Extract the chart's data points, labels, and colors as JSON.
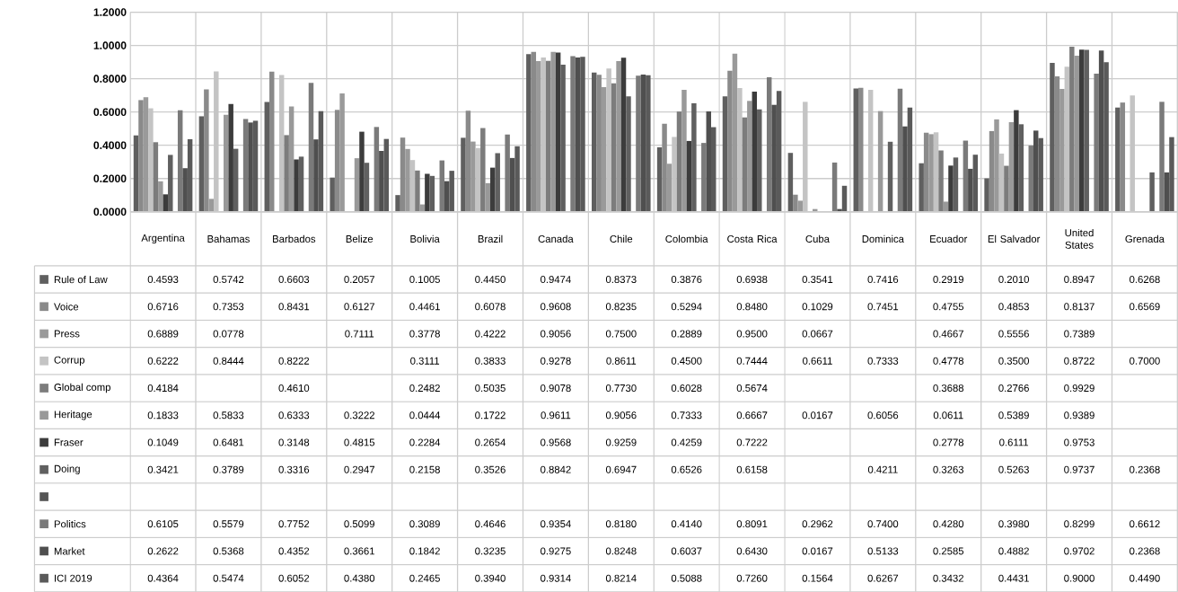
{
  "chart_data": {
    "type": "bar",
    "categories": [
      "Argentina",
      "Bahamas",
      "Barbados",
      "Belize",
      "Bolivia",
      "Brazil",
      "Canada",
      "Chile",
      "Colombia",
      "Costa Rica",
      "Cuba",
      "Dominica",
      "Ecuador",
      "El Salvador",
      "United States",
      "Grenada"
    ],
    "ylim": [
      0,
      1.2
    ],
    "yticks": [
      {
        "value": 0,
        "label": "0.0000"
      },
      {
        "value": 0.2,
        "label": "0.2000"
      },
      {
        "value": 0.4,
        "label": "0.4000"
      },
      {
        "value": 0.6,
        "label": "0.6000"
      },
      {
        "value": 0.8,
        "label": "0.8000"
      },
      {
        "value": 1.0,
        "label": "1.0000"
      },
      {
        "value": 1.2,
        "label": "1.2000"
      }
    ],
    "grid": "y",
    "legend": "bottom",
    "series": [
      {
        "name": "Rule of Law",
        "color": "#5f5f5f",
        "values": [
          0.4593,
          0.5742,
          0.6603,
          0.2057,
          0.1005,
          0.445,
          0.9474,
          0.8373,
          0.3876,
          0.6938,
          0.3541,
          0.7416,
          0.2919,
          0.201,
          0.8947,
          0.6268
        ],
        "value_labels": [
          "0.4593",
          "0.5742",
          "0.6603",
          "0.2057",
          "0.1005",
          "0.4450",
          "0.9474",
          "0.8373",
          "0.3876",
          "0.6938",
          "0.3541",
          "0.7416",
          "0.2919",
          "0.2010",
          "0.8947",
          "0.6268"
        ]
      },
      {
        "name": "Voice",
        "color": "#8a8a8a",
        "values": [
          0.6716,
          0.7353,
          0.8431,
          0.6127,
          0.4461,
          0.6078,
          0.9608,
          0.8235,
          0.5294,
          0.848,
          0.1029,
          0.7451,
          0.4755,
          0.4853,
          0.8137,
          0.6569
        ],
        "value_labels": [
          "0.6716",
          "0.7353",
          "0.8431",
          "0.6127",
          "0.4461",
          "0.6078",
          "0.9608",
          "0.8235",
          "0.5294",
          "0.8480",
          "0.1029",
          "0.7451",
          "0.4755",
          "0.4853",
          "0.8137",
          "0.6569"
        ]
      },
      {
        "name": "Press",
        "color": "#9a9a9a",
        "values": [
          0.6889,
          0.0778,
          null,
          0.7111,
          0.3778,
          0.4222,
          0.9056,
          0.75,
          0.2889,
          0.95,
          0.0667,
          null,
          0.4667,
          0.5556,
          0.7389,
          null
        ],
        "value_labels": [
          "0.6889",
          "0.0778",
          null,
          "0.7111",
          "0.3778",
          "0.4222",
          "0.9056",
          "0.7500",
          "0.2889",
          "0.9500",
          "0.0667",
          null,
          "0.4667",
          "0.5556",
          "0.7389",
          null
        ]
      },
      {
        "name": "Corrup",
        "color": "#c4c4c4",
        "values": [
          0.6222,
          0.8444,
          0.8222,
          null,
          0.3111,
          0.3833,
          0.9278,
          0.8611,
          0.45,
          0.7444,
          0.6611,
          0.7333,
          0.4778,
          0.35,
          0.8722,
          0.7
        ],
        "value_labels": [
          "0.6222",
          "0.8444",
          "0.8222",
          null,
          "0.3111",
          "0.3833",
          "0.9278",
          "0.8611",
          "0.4500",
          "0.7444",
          "0.6611",
          "0.7333",
          "0.4778",
          "0.3500",
          "0.8722",
          "0.7000"
        ]
      },
      {
        "name": "Global comp",
        "color": "#7c7c7c",
        "values": [
          0.4184,
          null,
          0.461,
          null,
          0.2482,
          0.5035,
          0.9078,
          0.773,
          0.6028,
          0.5674,
          null,
          null,
          0.3688,
          0.2766,
          0.9929,
          null
        ],
        "value_labels": [
          "0.4184",
          null,
          "0.4610",
          null,
          "0.2482",
          "0.5035",
          "0.9078",
          "0.7730",
          "0.6028",
          "0.5674",
          null,
          null,
          "0.3688",
          "0.2766",
          "0.9929",
          null
        ]
      },
      {
        "name": "Heritage",
        "color": "#999999",
        "values": [
          0.1833,
          0.5833,
          0.6333,
          0.3222,
          0.0444,
          0.1722,
          0.9611,
          0.9056,
          0.7333,
          0.6667,
          0.0167,
          0.6056,
          0.0611,
          0.5389,
          0.9389,
          null
        ],
        "value_labels": [
          "0.1833",
          "0.5833",
          "0.6333",
          "0.3222",
          "0.0444",
          "0.1722",
          "0.9611",
          "0.9056",
          "0.7333",
          "0.6667",
          "0.0167",
          "0.6056",
          "0.0611",
          "0.5389",
          "0.9389",
          null
        ]
      },
      {
        "name": "Fraser",
        "color": "#3c3c3c",
        "values": [
          0.1049,
          0.6481,
          0.3148,
          0.4815,
          0.2284,
          0.2654,
          0.9568,
          0.9259,
          0.4259,
          0.7222,
          null,
          null,
          0.2778,
          0.6111,
          0.9753,
          null
        ],
        "value_labels": [
          "0.1049",
          "0.6481",
          "0.3148",
          "0.4815",
          "0.2284",
          "0.2654",
          "0.9568",
          "0.9259",
          "0.4259",
          "0.7222",
          null,
          null,
          "0.2778",
          "0.6111",
          "0.9753",
          null
        ]
      },
      {
        "name": "Doing",
        "color": "#606060",
        "values": [
          0.3421,
          0.3789,
          0.3316,
          0.2947,
          0.2158,
          0.3526,
          0.8842,
          0.6947,
          0.6526,
          0.6158,
          null,
          0.4211,
          0.3263,
          0.5263,
          0.9737,
          0.2368
        ],
        "value_labels": [
          "0.3421",
          "0.3789",
          "0.3316",
          "0.2947",
          "0.2158",
          "0.3526",
          "0.8842",
          "0.6947",
          "0.6526",
          "0.6158",
          null,
          "0.4211",
          "0.3263",
          "0.5263",
          "0.9737",
          "0.2368"
        ]
      },
      {
        "color": "#555555",
        "values": [
          null,
          null,
          null,
          null,
          null,
          null,
          null,
          null,
          null,
          null,
          null,
          null,
          null,
          null,
          null,
          null
        ]
      },
      {
        "name": "Politics",
        "color": "#7a7a7a",
        "values": [
          0.6105,
          0.5579,
          0.7752,
          0.5099,
          0.3089,
          0.4646,
          0.9354,
          0.818,
          0.414,
          0.8091,
          0.2962,
          0.74,
          0.428,
          0.398,
          0.8299,
          0.6612
        ],
        "value_labels": [
          "0.6105",
          "0.5579",
          "0.7752",
          "0.5099",
          "0.3089",
          "0.4646",
          "0.9354",
          "0.8180",
          "0.4140",
          "0.8091",
          "0.2962",
          "0.7400",
          "0.4280",
          "0.3980",
          "0.8299",
          "0.6612"
        ]
      },
      {
        "name": "Market",
        "color": "#4f4f4f",
        "values": [
          0.2622,
          0.5368,
          0.4352,
          0.3661,
          0.1842,
          0.3235,
          0.9275,
          0.8248,
          0.6037,
          0.643,
          0.0167,
          0.5133,
          0.2585,
          0.4882,
          0.9702,
          0.2368
        ],
        "value_labels": [
          "0.2622",
          "0.5368",
          "0.4352",
          "0.3661",
          "0.1842",
          "0.3235",
          "0.9275",
          "0.8248",
          "0.6037",
          "0.6430",
          "0.0167",
          "0.5133",
          "0.2585",
          "0.4882",
          "0.9702",
          "0.2368"
        ]
      },
      {
        "name": "ICI 2019",
        "color": "#5a5a5a",
        "values": [
          0.4364,
          0.5474,
          0.6052,
          0.438,
          0.2465,
          0.394,
          0.9314,
          0.8214,
          0.5088,
          0.726,
          0.1564,
          0.6267,
          0.3432,
          0.4431,
          0.9,
          0.449
        ],
        "value_labels": [
          "0.4364",
          "0.5474",
          "0.6052",
          "0.4380",
          "0.2465",
          "0.3940",
          "0.9314",
          "0.8214",
          "0.5088",
          "0.7260",
          "0.1564",
          "0.6267",
          "0.3432",
          "0.4431",
          "0.9000",
          "0.4490"
        ]
      }
    ]
  }
}
